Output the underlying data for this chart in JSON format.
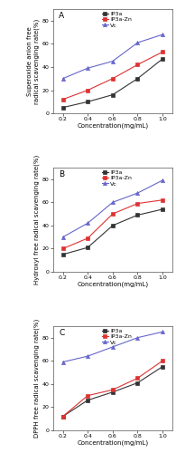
{
  "x": [
    0.2,
    0.4,
    0.6,
    0.8,
    1.0
  ],
  "panel_A": {
    "label": "A",
    "ylabel": "Superoxide anion free\nradical scavenging rate(%)",
    "xlabel": "Concentration(mg/mL)",
    "ylim": [
      0,
      90
    ],
    "yticks": [
      0,
      20,
      40,
      60,
      80
    ],
    "IP3a": [
      5,
      10,
      16,
      30,
      47
    ],
    "IP3a_Zn": [
      12,
      20,
      30,
      42,
      53
    ],
    "Vc": [
      30,
      39,
      45,
      61,
      68
    ]
  },
  "panel_B": {
    "label": "B",
    "ylabel": "Hydroxyl free radical scavenging rate(%)",
    "xlabel": "Concentration(mg/mL)",
    "ylim": [
      0,
      90
    ],
    "yticks": [
      0,
      20,
      40,
      60,
      80
    ],
    "IP3a": [
      15,
      21,
      40,
      49,
      54
    ],
    "IP3a_Zn": [
      20,
      29,
      50,
      59,
      62
    ],
    "Vc": [
      30,
      42,
      60,
      68,
      79
    ]
  },
  "panel_C": {
    "label": "C",
    "ylabel": "DPPH free radical scavenging rate(%)",
    "xlabel": "Concentration(mg/mL)",
    "ylim": [
      0,
      90
    ],
    "yticks": [
      0,
      20,
      40,
      60,
      80
    ],
    "IP3a": [
      12,
      26,
      33,
      41,
      55
    ],
    "IP3a_Zn": [
      12,
      30,
      35,
      45,
      60
    ],
    "Vc": [
      59,
      64,
      72,
      80,
      85
    ]
  },
  "colors": {
    "IP3a": "#333333",
    "IP3a_Zn": "#dd3333",
    "Vc": "#6666cc"
  },
  "marker_IP3a": "s",
  "marker_IP3a_Zn": "s",
  "marker_Vc": "^",
  "linewidth": 0.8,
  "markersize": 3.0,
  "fontsize_label": 5.0,
  "fontsize_tick": 4.5,
  "fontsize_legend": 4.5,
  "fontsize_panel": 6.5
}
